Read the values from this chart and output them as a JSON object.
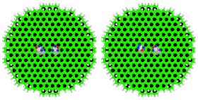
{
  "background_color": "#ffffff",
  "fig_width": 2.8,
  "fig_height": 1.42,
  "dpi": 100,
  "graphene_green": "#22ee00",
  "graphene_dark": "#111111",
  "atom_white": "#e8e8e8",
  "h_atom_color": "#d0d0d0",
  "nucleobase_blue": "#3333bb",
  "nucleobase_red": "#cc2222",
  "nucleobase_gray": "#bbbbbb",
  "nucleobase_white": "#e0e0e0",
  "hex_size": 0.072,
  "ellipse_a": 0.93,
  "ellipse_b": 0.88
}
